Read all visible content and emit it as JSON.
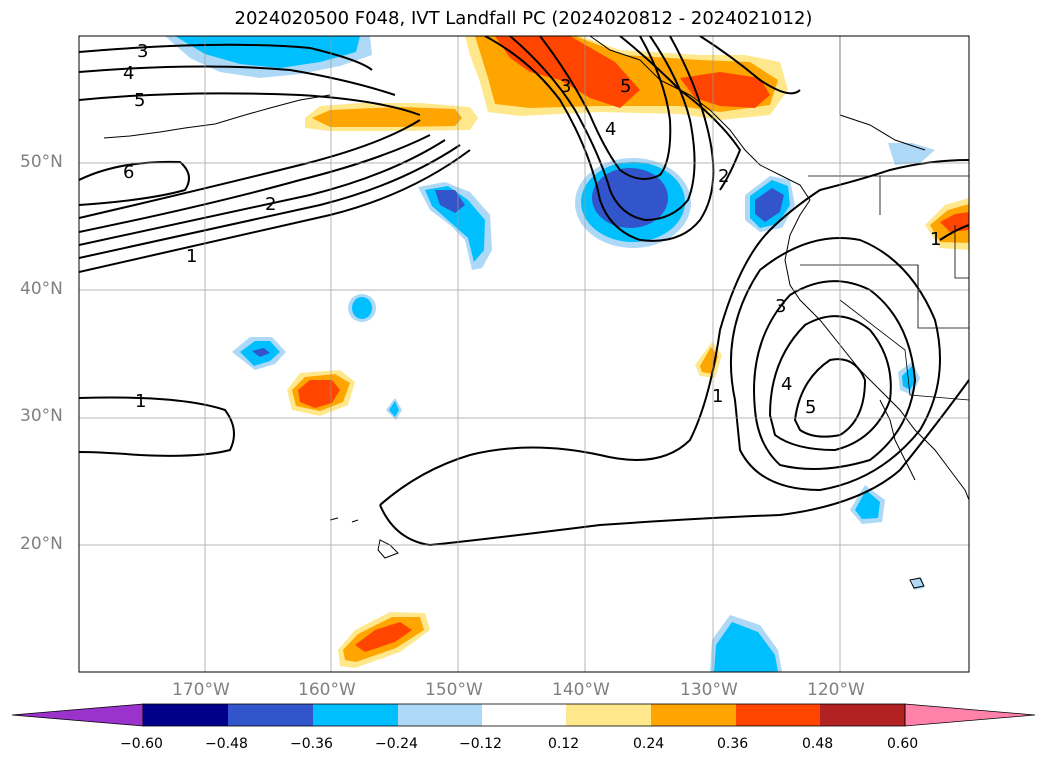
{
  "title": "2024020500 F048, IVT Landfall PC (2024020812 - 2024021012)",
  "lat_labels": [
    "50°N",
    "40°N",
    "30°N",
    "20°N"
  ],
  "lon_labels": [
    "170°W",
    "160°W",
    "150°W",
    "140°W",
    "130°W",
    "120°W"
  ],
  "contour_labels": [
    "3",
    "4",
    "5",
    "6",
    "2",
    "1",
    "1",
    "3",
    "5",
    "4",
    "2",
    "3",
    "4",
    "5",
    "1",
    "1"
  ],
  "colorbar": {
    "ticks": [
      "−0.60",
      "−0.48",
      "−0.36",
      "−0.24",
      "−0.12",
      "0.12",
      "0.24",
      "0.36",
      "0.48",
      "0.60"
    ],
    "colors": [
      "#9933cc",
      "#00008b",
      "#3355cc",
      "#00bfff",
      "#add8f6",
      "#ffffff",
      "#ffe88c",
      "#ffa500",
      "#ff4500",
      "#b22222",
      "#ff82aa"
    ]
  },
  "fill_colors": {
    "neg_light": "#add8f6",
    "neg_mid": "#00bfff",
    "neg_dark": "#3355cc",
    "pos_light": "#ffe88c",
    "pos_mid": "#ffa500",
    "pos_dark": "#ff4500"
  }
}
